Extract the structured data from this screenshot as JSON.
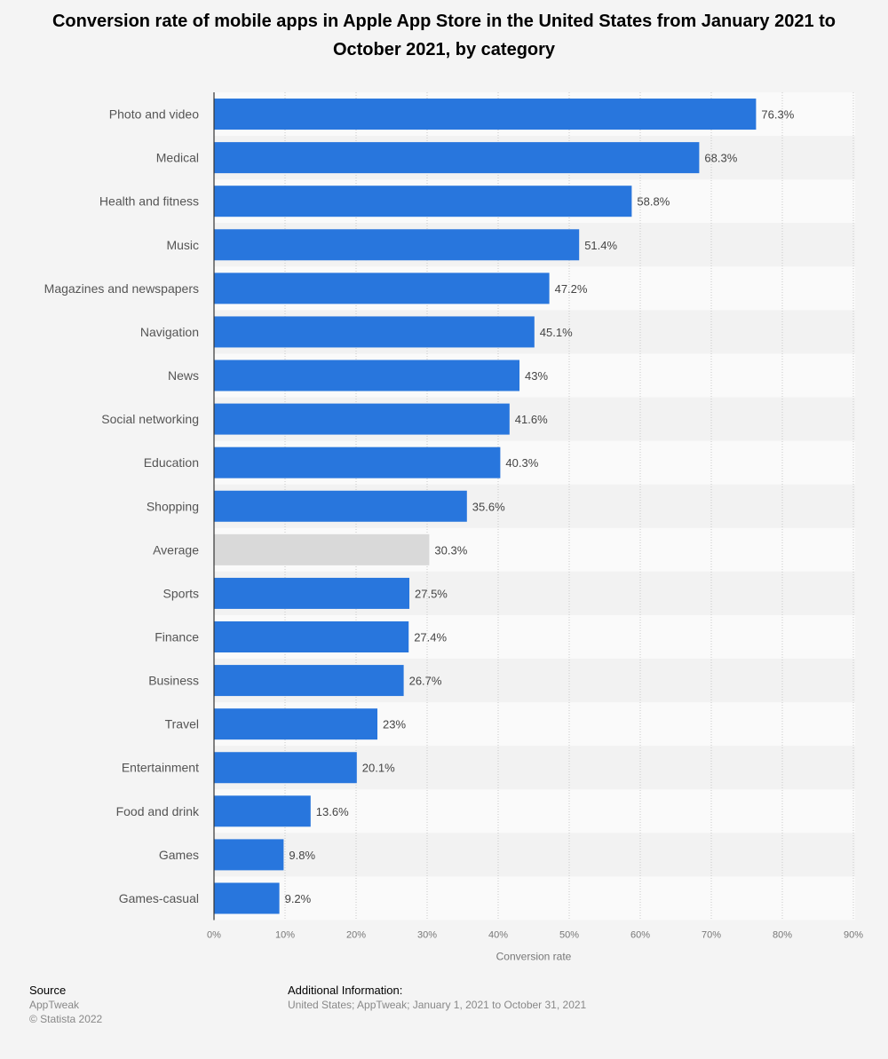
{
  "chart_data": {
    "type": "bar",
    "orientation": "horizontal",
    "title": "Conversion rate of mobile apps in Apple App Store in the United States from January 2021 to October 2021, by category",
    "xlabel": "Conversion rate",
    "ylabel": "",
    "xlim": [
      0,
      90
    ],
    "ticks": [
      "0%",
      "10%",
      "20%",
      "30%",
      "40%",
      "50%",
      "60%",
      "70%",
      "80%",
      "90%"
    ],
    "tick_values": [
      0,
      10,
      20,
      30,
      40,
      50,
      60,
      70,
      80,
      90
    ],
    "grid": true,
    "colors": {
      "bar": "#2876dd",
      "highlight": "#d9d9d9"
    },
    "categories": [
      "Photo and video",
      "Medical",
      "Health and fitness",
      "Music",
      "Magazines and newspapers",
      "Navigation",
      "News",
      "Social networking",
      "Education",
      "Shopping",
      "Average",
      "Sports",
      "Finance",
      "Business",
      "Travel",
      "Entertainment",
      "Food and drink",
      "Games",
      "Games-casual"
    ],
    "values": [
      76.3,
      68.3,
      58.8,
      51.4,
      47.2,
      45.1,
      43,
      41.6,
      40.3,
      35.6,
      30.3,
      27.5,
      27.4,
      26.7,
      23,
      20.1,
      13.6,
      9.8,
      9.2
    ],
    "labels": [
      "76.3%",
      "68.3%",
      "58.8%",
      "51.4%",
      "47.2%",
      "45.1%",
      "43%",
      "41.6%",
      "40.3%",
      "35.6%",
      "30.3%",
      "27.5%",
      "27.4%",
      "26.7%",
      "23%",
      "20.1%",
      "13.6%",
      "9.8%",
      "9.2%"
    ],
    "highlight_category": "Average"
  },
  "footer": {
    "source_heading": "Source",
    "source_name": "AppTweak",
    "copyright": "© Statista 2022",
    "info_heading": "Additional Information:",
    "info_text": "United States; AppTweak; January 1, 2021 to October 31, 2021"
  }
}
